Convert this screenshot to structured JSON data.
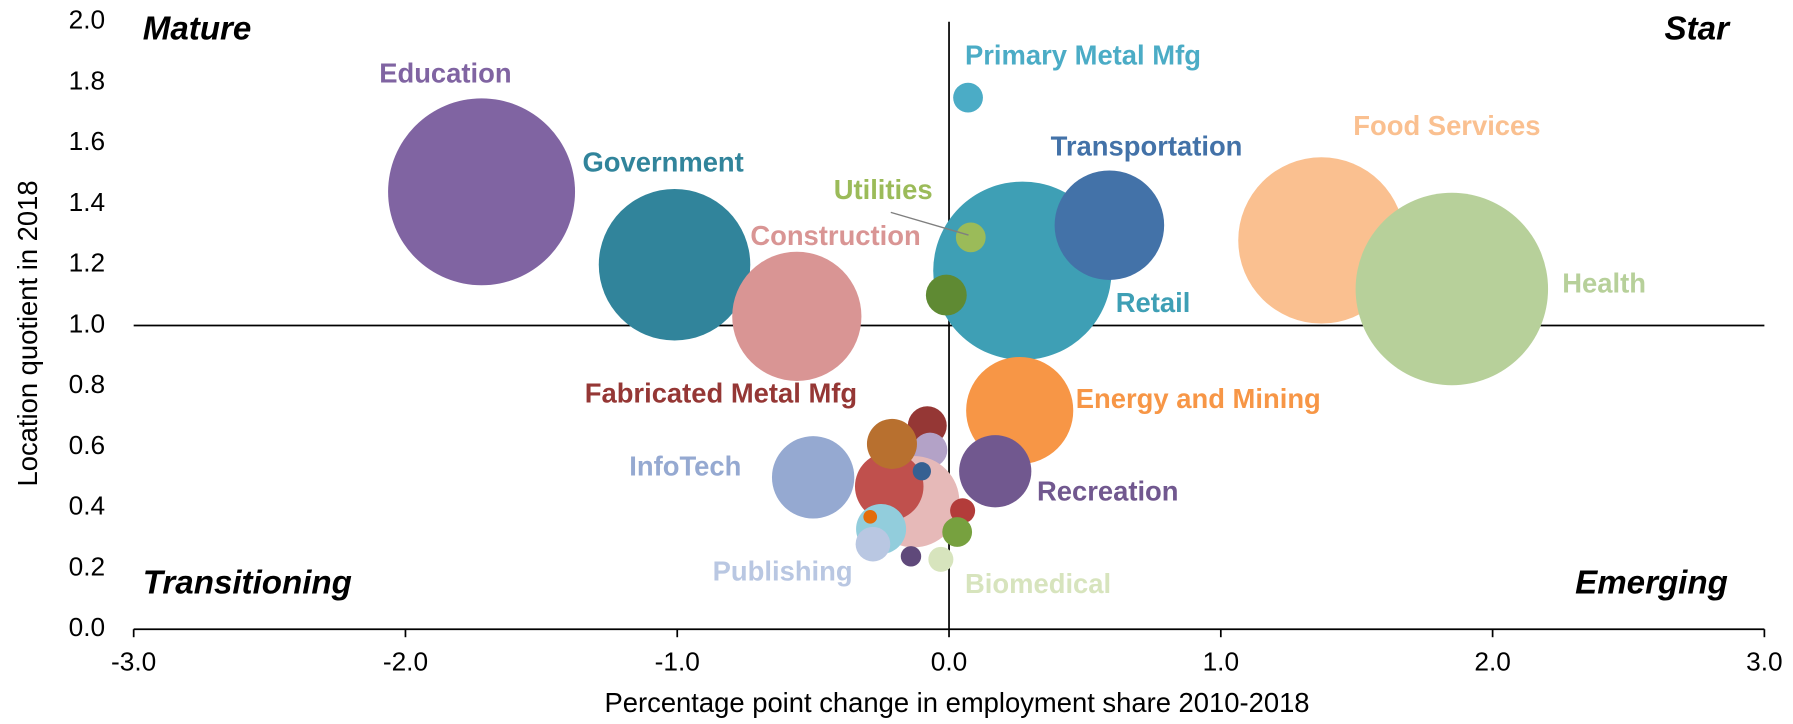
{
  "chart_data": {
    "type": "bubble",
    "x_label": "Percentage point change in employment share 2010-2018",
    "y_label": "Location quotient in 2018",
    "xlim": [
      -3,
      3
    ],
    "ylim": [
      0,
      2
    ],
    "xticks": [
      {
        "value": -3,
        "label": "-3.0"
      },
      {
        "value": -2,
        "label": "-2.0"
      },
      {
        "value": -1,
        "label": "-1.0"
      },
      {
        "value": 0,
        "label": "0.0"
      },
      {
        "value": 1,
        "label": "1.0"
      },
      {
        "value": 2,
        "label": "2.0"
      },
      {
        "value": 3,
        "label": "3.0"
      }
    ],
    "yticks": [
      {
        "value": 0,
        "label": "0.0"
      },
      {
        "value": 0.2,
        "label": "0.2"
      },
      {
        "value": 0.4,
        "label": "0.4"
      },
      {
        "value": 0.6,
        "label": "0.6"
      },
      {
        "value": 0.8,
        "label": "0.8"
      },
      {
        "value": 1,
        "label": "1.0"
      },
      {
        "value": 1.2,
        "label": "1.2"
      },
      {
        "value": 1.4,
        "label": "1.4"
      },
      {
        "value": 1.6,
        "label": "1.6"
      },
      {
        "value": 1.8,
        "label": "1.8"
      },
      {
        "value": 2,
        "label": "2.0"
      }
    ],
    "crosshair": {
      "x": 0,
      "y": 1
    },
    "quadrants": {
      "top_left": "Mature",
      "top_right": "Star",
      "bottom_left": "Transitioning",
      "bottom_right": "Emerging"
    },
    "points": [
      {
        "name": "Education",
        "x": -1.72,
        "y": 1.44,
        "size": 67,
        "color": "#8064a2"
      },
      {
        "name": "Government",
        "x": -1.01,
        "y": 1.2,
        "size": 44,
        "color": "#31849b"
      },
      {
        "name": "Construction",
        "x": -0.56,
        "y": 1.03,
        "size": 32,
        "color": "#d99594"
      },
      {
        "name": "Food Services",
        "x": 1.37,
        "y": 1.28,
        "size": 53,
        "color": "#fac090"
      },
      {
        "name": "Health",
        "x": 1.85,
        "y": 1.12,
        "size": 71,
        "color": "#b7d09a"
      },
      {
        "name": "Primary Metal Mfg",
        "x": 0.07,
        "y": 1.75,
        "size": 1.7,
        "color": "#4bacc6"
      },
      {
        "name": "Retail",
        "x": 0.27,
        "y": 1.18,
        "size": 61,
        "color": "#3e9fb5"
      },
      {
        "name": "Transportation",
        "x": 0.59,
        "y": 1.33,
        "size": 23,
        "color": "#4372a8"
      },
      {
        "name": "Utilities",
        "x": 0.08,
        "y": 1.29,
        "size": 1.7,
        "color": "#9bbb59"
      },
      {
        "name": null,
        "x": -0.01,
        "y": 1.1,
        "size": 3.2,
        "color": "#5f8a33"
      },
      {
        "name": "Energy and Mining",
        "x": 0.26,
        "y": 0.72,
        "size": 22,
        "color": "#f79646"
      },
      {
        "name": "InfoTech",
        "x": -0.5,
        "y": 0.5,
        "size": 13,
        "color": "#95a9d1"
      },
      {
        "name": "Recreation",
        "x": 0.17,
        "y": 0.52,
        "size": 10,
        "color": "#71588f"
      },
      {
        "name": "Fabricated Metal Mfg",
        "x": -0.08,
        "y": 0.67,
        "size": 2.9,
        "color": "#953735"
      },
      {
        "name": null,
        "x": -0.07,
        "y": 0.59,
        "size": 2.3,
        "color": "#b3a2c7"
      },
      {
        "name": null,
        "x": -0.13,
        "y": 0.42,
        "size": 16,
        "color": "#e6b9b8"
      },
      {
        "name": null,
        "x": -0.22,
        "y": 0.47,
        "size": 9,
        "color": "#c0504d"
      },
      {
        "name": null,
        "x": -0.21,
        "y": 0.61,
        "size": 4.8,
        "color": "#b8702f"
      },
      {
        "name": null,
        "x": -0.1,
        "y": 0.52,
        "size": 0.64,
        "color": "#366092"
      },
      {
        "name": null,
        "x": 0.05,
        "y": 0.39,
        "size": 1.2,
        "color": "#b33c3a"
      },
      {
        "name": null,
        "x": -0.25,
        "y": 0.33,
        "size": 4.8,
        "color": "#92cddc"
      },
      {
        "name": null,
        "x": -0.29,
        "y": 0.37,
        "size": 0.36,
        "color": "#e46c0a"
      },
      {
        "name": "Publishing",
        "x": -0.28,
        "y": 0.28,
        "size": 2.3,
        "color": "#b9c7e2"
      },
      {
        "name": null,
        "x": 0.03,
        "y": 0.32,
        "size": 1.7,
        "color": "#77a13f"
      },
      {
        "name": null,
        "x": -0.14,
        "y": 0.24,
        "size": 0.8,
        "color": "#5f497a"
      },
      {
        "name": "Biomedical",
        "x": -0.03,
        "y": 0.23,
        "size": 1.2,
        "color": "#d7e4bd"
      }
    ]
  }
}
